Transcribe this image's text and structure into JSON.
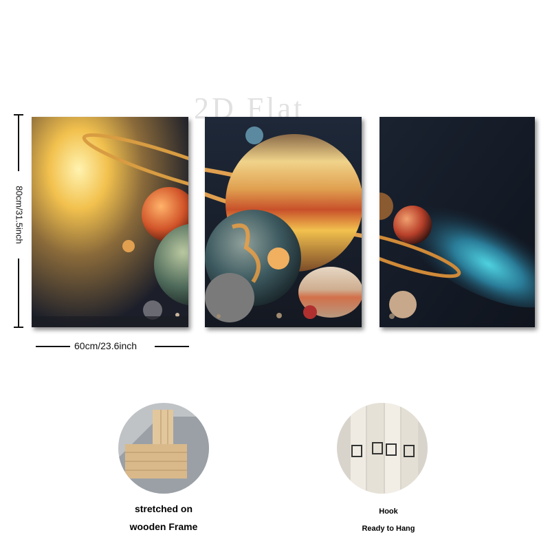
{
  "watermark": "2D Flat",
  "dimensions": {
    "height_label": "80cm/31.5inch",
    "width_label": "60cm/23.6inch"
  },
  "panels": [
    {
      "name": "left",
      "theme": "golden nebula with planets"
    },
    {
      "name": "middle",
      "theme": "ringed gas giant"
    },
    {
      "name": "right",
      "theme": "blue nebula with planets"
    }
  ],
  "details": {
    "frame": {
      "line1": "stretched on",
      "line2": "wooden Frame"
    },
    "hook": {
      "line1": "Hook",
      "line2": "Ready to Hang"
    }
  },
  "colors": {
    "space_dark": "#161b26",
    "nebula_gold": "#f2c14e",
    "nebula_blue": "#2fb3c9",
    "planet_orange": "#e8833a",
    "wood": "#d9b98a"
  }
}
